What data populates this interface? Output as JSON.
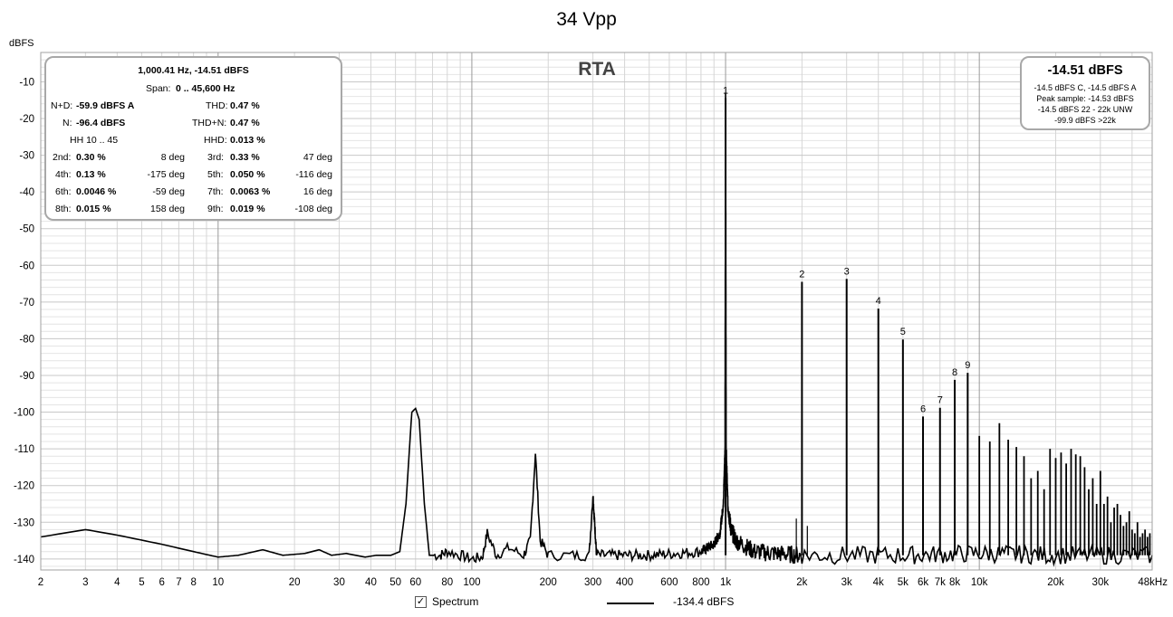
{
  "window": {
    "title": "34 Vpp",
    "y_unit": "dBFS",
    "plot_label": "RTA"
  },
  "stats": {
    "header": "1,000.41 Hz, -14.51 dBFS",
    "span_label": "Span:",
    "span_value": "0 .. 45,600 Hz",
    "nd_label": "N+D:",
    "nd_value": "-59.9 dBFS A",
    "thd_label": "THD:",
    "thd_value": "0.47 %",
    "n_label": "N:",
    "n_value": "-96.4 dBFS",
    "thdn_label": "THD+N:",
    "thdn_value": "0.47 %",
    "hh_label": "HH 10 .. 45",
    "hhd_label": "HHD:",
    "hhd_value": "0.013 %",
    "harmonics": [
      {
        "label": "2nd:",
        "value": "0.30 %",
        "phase": "8 deg"
      },
      {
        "label": "3rd:",
        "value": "0.33 %",
        "phase": "47 deg"
      },
      {
        "label": "4th:",
        "value": "0.13 %",
        "phase": "-175 deg"
      },
      {
        "label": "5th:",
        "value": "0.050 %",
        "phase": "-116 deg"
      },
      {
        "label": "6th:",
        "value": "0.0046 %",
        "phase": "-59 deg"
      },
      {
        "label": "7th:",
        "value": "0.0063 %",
        "phase": "16 deg"
      },
      {
        "label": "8th:",
        "value": "0.015 %",
        "phase": "158 deg"
      },
      {
        "label": "9th:",
        "value": "0.019 %",
        "phase": "-108 deg"
      }
    ]
  },
  "level_box": {
    "main": "-14.51 dBFS",
    "lines": [
      "-14.5 dBFS C, -14.5 dBFS A",
      "Peak sample: -14.53 dBFS",
      "-14.5 dBFS 22 - 22k UNW",
      "-99.9 dBFS >22k"
    ]
  },
  "legend": {
    "checkbox_mark": "✓",
    "series_label": "Spectrum",
    "series_value": "-134.4 dBFS"
  },
  "chart_data": {
    "type": "line",
    "title": "34 Vpp",
    "ylabel": "dBFS",
    "xscale": "log",
    "xlim": [
      2,
      48000
    ],
    "ylim": [
      -143,
      -2
    ],
    "y_ticks": [
      -10,
      -20,
      -30,
      -40,
      -50,
      -60,
      -70,
      -80,
      -90,
      -100,
      -110,
      -120,
      -130,
      -140
    ],
    "x_ticks": [
      {
        "v": 2,
        "l": "2"
      },
      {
        "v": 3,
        "l": "3"
      },
      {
        "v": 4,
        "l": "4"
      },
      {
        "v": 5,
        "l": "5"
      },
      {
        "v": 6,
        "l": "6"
      },
      {
        "v": 7,
        "l": "7"
      },
      {
        "v": 8,
        "l": "8"
      },
      {
        "v": 10,
        "l": "10"
      },
      {
        "v": 20,
        "l": "20"
      },
      {
        "v": 30,
        "l": "30"
      },
      {
        "v": 40,
        "l": "40"
      },
      {
        "v": 50,
        "l": "50"
      },
      {
        "v": 60,
        "l": "60"
      },
      {
        "v": 80,
        "l": "80"
      },
      {
        "v": 100,
        "l": "100"
      },
      {
        "v": 200,
        "l": "200"
      },
      {
        "v": 300,
        "l": "300"
      },
      {
        "v": 400,
        "l": "400"
      },
      {
        "v": 600,
        "l": "600"
      },
      {
        "v": 800,
        "l": "800"
      },
      {
        "v": 1000,
        "l": "1k"
      },
      {
        "v": 2000,
        "l": "2k"
      },
      {
        "v": 3000,
        "l": "3k"
      },
      {
        "v": 4000,
        "l": "4k"
      },
      {
        "v": 5000,
        "l": "5k"
      },
      {
        "v": 6000,
        "l": "6k"
      },
      {
        "v": 7000,
        "l": "7k"
      },
      {
        "v": 8000,
        "l": "8k"
      },
      {
        "v": 10000,
        "l": "10k"
      },
      {
        "v": 20000,
        "l": "20k"
      },
      {
        "v": 30000,
        "l": "30k"
      },
      {
        "v": 48000,
        "l": "48kHz"
      }
    ],
    "noise_floor": [
      [
        2,
        -134
      ],
      [
        3,
        -132
      ],
      [
        4,
        -133.5
      ],
      [
        6,
        -136
      ],
      [
        8,
        -138
      ],
      [
        10,
        -139.5
      ],
      [
        12,
        -139
      ],
      [
        15,
        -137.5
      ],
      [
        18,
        -139
      ],
      [
        22,
        -138.5
      ],
      [
        25,
        -137.5
      ],
      [
        28,
        -139
      ],
      [
        32,
        -138.5
      ],
      [
        38,
        -139.5
      ],
      [
        42,
        -139
      ],
      [
        48,
        -139
      ],
      [
        52,
        -138
      ],
      [
        55,
        -125
      ],
      [
        58,
        -100
      ],
      [
        60,
        -99
      ],
      [
        62,
        -102
      ],
      [
        65,
        -125
      ],
      [
        68,
        -139
      ],
      [
        75,
        -139
      ],
      [
        80,
        -138
      ],
      [
        90,
        -139
      ],
      [
        100,
        -140
      ],
      [
        110,
        -139.5
      ],
      [
        115,
        -133
      ],
      [
        125,
        -139
      ],
      [
        140,
        -137
      ],
      [
        160,
        -139
      ],
      [
        170,
        -135
      ],
      [
        178,
        -111
      ],
      [
        186,
        -135
      ],
      [
        200,
        -139
      ],
      [
        250,
        -139
      ],
      [
        290,
        -139
      ],
      [
        300,
        -122.5
      ],
      [
        310,
        -139
      ],
      [
        500,
        -139
      ],
      [
        800,
        -138
      ],
      [
        900,
        -136
      ],
      [
        950,
        -133
      ],
      [
        980,
        -125
      ],
      [
        995,
        -110
      ],
      [
        1000,
        -14.4
      ],
      [
        1005,
        -110
      ],
      [
        1020,
        -125
      ],
      [
        1050,
        -132
      ],
      [
        1100,
        -135
      ],
      [
        1300,
        -138
      ],
      [
        1600,
        -138.5
      ],
      [
        2000,
        -139
      ],
      [
        5000,
        -139
      ],
      [
        10000,
        -138.5
      ],
      [
        20000,
        -139
      ],
      [
        48000,
        -139
      ]
    ],
    "harmonic_peaks": [
      {
        "label": "1",
        "f": 1000,
        "db": -14.4
      },
      {
        "label": "2",
        "f": 2000,
        "db": -64.5
      },
      {
        "label": "3",
        "f": 3000,
        "db": -63.7
      },
      {
        "label": "4",
        "f": 4000,
        "db": -71.8
      },
      {
        "label": "5",
        "f": 5000,
        "db": -80.2
      },
      {
        "label": "6",
        "f": 6000,
        "db": -101.2
      },
      {
        "label": "7",
        "f": 7000,
        "db": -98.8
      },
      {
        "label": "8",
        "f": 8000,
        "db": -91.2
      },
      {
        "label": "9",
        "f": 9000,
        "db": -89.3
      }
    ],
    "higher_peaks": [
      [
        10000,
        -106.5
      ],
      [
        11000,
        -108
      ],
      [
        12000,
        -103
      ],
      [
        13000,
        -107.5
      ],
      [
        14000,
        -109.5
      ],
      [
        15000,
        -112
      ],
      [
        16000,
        -118
      ],
      [
        17000,
        -116
      ],
      [
        18000,
        -121
      ],
      [
        19000,
        -110
      ],
      [
        20000,
        -112.5
      ],
      [
        21000,
        -111
      ],
      [
        22000,
        -114
      ],
      [
        23000,
        -110
      ],
      [
        24000,
        -111.5
      ],
      [
        25000,
        -112
      ],
      [
        26000,
        -115
      ],
      [
        27000,
        -121
      ],
      [
        28000,
        -118
      ],
      [
        29000,
        -125
      ],
      [
        30000,
        -116
      ],
      [
        31000,
        -125
      ],
      [
        32000,
        -123
      ],
      [
        33000,
        -130
      ],
      [
        34000,
        -126
      ],
      [
        35000,
        -125
      ],
      [
        36000,
        -128
      ],
      [
        37000,
        -131
      ],
      [
        38000,
        -130
      ],
      [
        39000,
        -127
      ],
      [
        40000,
        -132
      ],
      [
        41000,
        -133
      ],
      [
        42000,
        -130
      ],
      [
        43000,
        -134
      ],
      [
        44000,
        -133
      ],
      [
        45000,
        -132
      ],
      [
        46000,
        -134
      ],
      [
        47000,
        -133
      ]
    ],
    "minor_spurs": [
      [
        1900,
        -129
      ],
      [
        2100,
        -131
      ]
    ],
    "series": [
      {
        "name": "Spectrum",
        "legend_value": "-134.4 dBFS"
      }
    ],
    "grid": true,
    "legend_position": "bottom"
  }
}
